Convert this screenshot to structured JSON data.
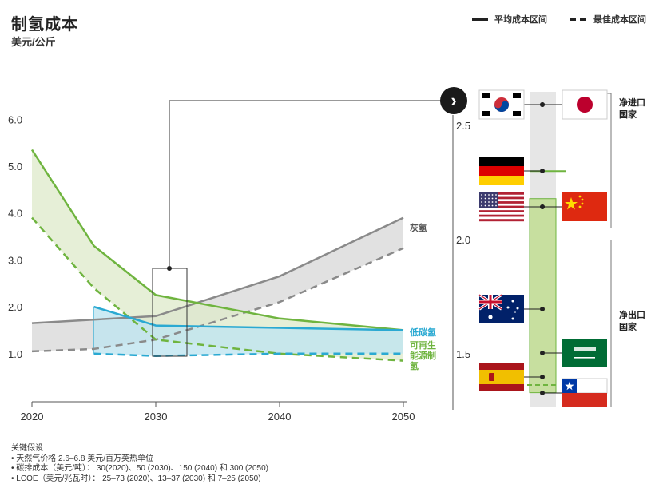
{
  "header": {
    "title": "制氢成本",
    "subtitle": "美元/公斤"
  },
  "legend": {
    "avg": "平均成本区间",
    "best": "最佳成本区间"
  },
  "notes": {
    "heading": "关键假设",
    "lines": [
      "• 天然气价格 2.6–6.8 美元/百万英热单位",
      "• 碳排成本（美元/吨）： 30(2020)、50 (2030)、150 (2040) 和 300 (2050)",
      "• LCOE（美元/兆瓦时）： 25–73 (2020)、13–37 (2030) 和 7–25 (2050)"
    ]
  },
  "colors": {
    "grey": "#8a8a8a",
    "blue": "#2aa9d2",
    "green": "#6fb43f",
    "grey_fill": "#d9d9d9",
    "blue_fill": "#bfe5f0",
    "green_fill": "#dde9c9",
    "column_fill": "#c7df9f"
  },
  "chart_data": [
    {
      "type": "line",
      "xlim": [
        2020,
        2050
      ],
      "ylim": [
        0.5,
        6.2
      ],
      "x_ticks": [
        "2020",
        "2030",
        "2040",
        "2050"
      ],
      "y_ticks": [
        "1.0",
        "2.0",
        "3.0",
        "4.0",
        "5.0",
        "6.0"
      ],
      "series": [
        {
          "name": "灰氢",
          "color_key": "grey",
          "avg": [
            [
              2020,
              1.65
            ],
            [
              2030,
              1.8
            ],
            [
              2040,
              2.65
            ],
            [
              2050,
              3.9
            ]
          ],
          "best": [
            [
              2020,
              1.05
            ],
            [
              2025,
              1.1
            ],
            [
              2030,
              1.3
            ],
            [
              2040,
              2.1
            ],
            [
              2050,
              3.25
            ]
          ]
        },
        {
          "name": "低碳氢",
          "color_key": "blue",
          "avg": [
            [
              2025,
              2.0
            ],
            [
              2030,
              1.6
            ],
            [
              2040,
              1.55
            ],
            [
              2050,
              1.5
            ]
          ],
          "best": [
            [
              2025,
              1.0
            ],
            [
              2030,
              0.95
            ],
            [
              2040,
              1.0
            ],
            [
              2050,
              1.0
            ]
          ]
        },
        {
          "name": "可再生能源制氢",
          "name_lines": [
            "可再生",
            "能源制",
            "氢"
          ],
          "color_key": "green",
          "avg": [
            [
              2020,
              5.35
            ],
            [
              2025,
              3.3
            ],
            [
              2030,
              2.25
            ],
            [
              2040,
              1.75
            ],
            [
              2050,
              1.5
            ]
          ],
          "best": [
            [
              2020,
              3.9
            ],
            [
              2025,
              2.4
            ],
            [
              2030,
              1.3
            ],
            [
              2040,
              1.0
            ],
            [
              2050,
              0.85
            ]
          ]
        }
      ]
    },
    {
      "type": "scatter",
      "ylim": [
        1.32,
        2.65
      ],
      "y_ticks": [
        "2.5",
        "2.0",
        "1.5"
      ],
      "column_range": [
        1.33,
        2.48
      ],
      "green_marker": 2.3,
      "green_dash": 1.35,
      "groups": [
        {
          "name": "净进口国家",
          "name_lines": [
            "净进口",
            "国家"
          ]
        },
        {
          "name": "净出口国家",
          "name_lines": [
            "净出口",
            "国家"
          ]
        }
      ],
      "countries": [
        {
          "name": "韩国",
          "flag": "korea-flag",
          "value": 2.48,
          "side": "left"
        },
        {
          "name": "日本",
          "flag": "japan-flag",
          "value": 2.48,
          "side": "right"
        },
        {
          "name": "德国",
          "flag": "germany-flag",
          "value": 2.3,
          "side": "left"
        },
        {
          "name": "美国",
          "flag": "usa-flag",
          "value": 2.15,
          "side": "left"
        },
        {
          "name": "中国",
          "flag": "china-flag",
          "value": 2.15,
          "side": "right"
        },
        {
          "name": "澳大利亚",
          "flag": "australia-flag",
          "value": 1.68,
          "side": "left"
        },
        {
          "name": "沙特阿拉伯",
          "flag": "saudi-flag",
          "value": 1.5,
          "side": "right"
        },
        {
          "name": "西班牙",
          "flag": "spain-flag",
          "value": 1.4,
          "side": "left"
        },
        {
          "name": "智利",
          "flag": "chile-flag",
          "value": 1.33,
          "side": "right"
        }
      ]
    }
  ],
  "icons": {
    "chevron": "chevron-right-icon",
    "chevron_glyph": "›"
  }
}
